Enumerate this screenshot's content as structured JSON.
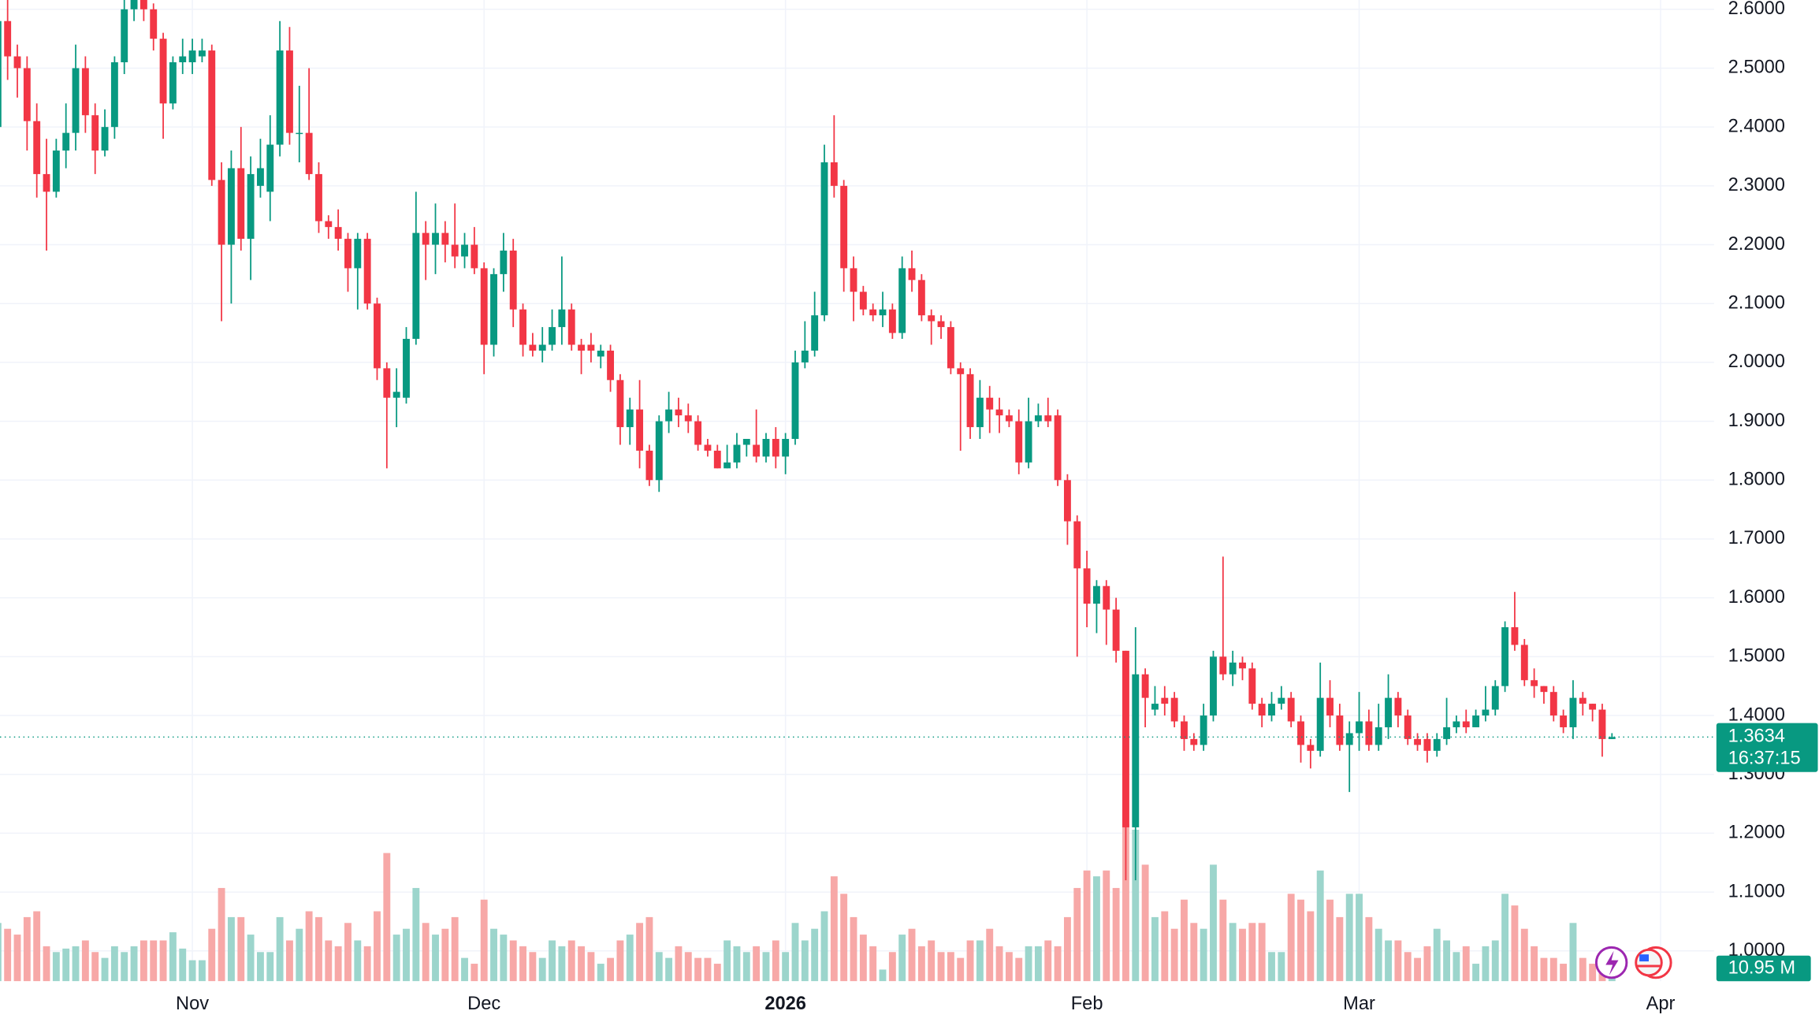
{
  "chart_data": {
    "type": "candlestick",
    "x": [
      0,
      1,
      2,
      3,
      4,
      5,
      6,
      7,
      8,
      9,
      10,
      11,
      12,
      13,
      14,
      15,
      16,
      17,
      18,
      19,
      20,
      21,
      22,
      23,
      24,
      25,
      26,
      27,
      28,
      29,
      30,
      31,
      32,
      33,
      34,
      35,
      36,
      37,
      38,
      39,
      40,
      41,
      42,
      43,
      44,
      45,
      46,
      47,
      48,
      49,
      50,
      51,
      52,
      53,
      54,
      55,
      56,
      57,
      58,
      59,
      60,
      61,
      62,
      63,
      64,
      65,
      66,
      67,
      68,
      69,
      70,
      71,
      72,
      73,
      74,
      75,
      76,
      77,
      78,
      79,
      80,
      81,
      82,
      83,
      84,
      85,
      86,
      87,
      88,
      89,
      90,
      91,
      92,
      93,
      94,
      95,
      96,
      97,
      98,
      99,
      100,
      101,
      102,
      103,
      104,
      105,
      106,
      107,
      108,
      109,
      110,
      111,
      112,
      113,
      114,
      115,
      116,
      117,
      118,
      119,
      120,
      121,
      122,
      123,
      124,
      125,
      126,
      127,
      128,
      129,
      130,
      131,
      132,
      133,
      134,
      135,
      136,
      137,
      138,
      139,
      140,
      141,
      142,
      143,
      144,
      145,
      146,
      147,
      148,
      149,
      150,
      151,
      152,
      153,
      154,
      155,
      156,
      157,
      158,
      159,
      160,
      161,
      162,
      163,
      164,
      165,
      166
    ],
    "open": [
      2.4,
      2.58,
      2.52,
      2.5,
      2.41,
      2.32,
      2.29,
      2.36,
      2.39,
      2.5,
      2.42,
      2.36,
      2.4,
      2.51,
      2.6,
      2.62,
      2.6,
      2.55,
      2.44,
      2.51,
      2.51,
      2.52,
      2.53,
      2.31,
      2.2,
      2.33,
      2.21,
      2.3,
      2.29,
      2.37,
      2.53,
      2.39,
      2.39,
      2.32,
      2.24,
      2.23,
      2.21,
      2.16,
      2.21,
      2.1,
      1.99,
      1.94,
      1.94,
      2.04,
      2.22,
      2.2,
      2.22,
      2.2,
      2.18,
      2.2,
      2.16,
      2.03,
      2.15,
      2.19,
      2.09,
      2.03,
      2.02,
      2.03,
      2.06,
      2.09,
      2.03,
      2.03,
      2.01,
      2.02,
      1.97,
      1.89,
      1.92,
      1.85,
      1.8,
      1.9,
      1.92,
      1.91,
      1.9,
      1.86,
      1.85,
      1.82,
      1.83,
      1.86,
      1.86,
      1.84,
      1.87,
      1.84,
      1.87,
      2.0,
      2.02,
      2.08,
      2.34,
      2.3,
      2.16,
      2.12,
      2.09,
      2.08,
      2.09,
      2.05,
      2.16,
      2.14,
      2.08,
      2.07,
      2.06,
      1.99,
      1.98,
      1.89,
      1.94,
      1.92,
      1.91,
      1.9,
      1.83,
      1.9,
      1.91,
      1.91,
      1.8,
      1.73,
      1.65,
      1.59,
      1.62,
      1.58,
      1.51,
      1.21,
      1.47,
      1.41,
      1.43,
      1.43,
      1.39,
      1.36,
      1.35,
      1.4,
      1.5,
      1.47,
      1.49,
      1.48,
      1.42,
      1.4,
      1.42,
      1.43,
      1.39,
      1.35,
      1.34,
      1.43,
      1.4,
      1.35,
      1.37,
      1.39,
      1.35,
      1.38,
      1.43,
      1.4,
      1.36,
      1.36,
      1.34,
      1.36,
      1.38,
      1.39,
      1.38,
      1.4,
      1.41,
      1.45,
      1.55,
      1.52,
      1.46,
      1.45,
      1.44,
      1.4,
      1.38,
      1.43,
      1.42,
      1.41,
      1.36
    ],
    "high": [
      2.62,
      2.62,
      2.54,
      2.52,
      2.44,
      2.38,
      2.38,
      2.44,
      2.54,
      2.52,
      2.44,
      2.43,
      2.52,
      2.62,
      2.64,
      2.64,
      2.61,
      2.56,
      2.52,
      2.55,
      2.55,
      2.55,
      2.54,
      2.34,
      2.36,
      2.4,
      2.35,
      2.38,
      2.42,
      2.58,
      2.57,
      2.47,
      2.5,
      2.34,
      2.25,
      2.26,
      2.22,
      2.22,
      2.22,
      2.11,
      2.0,
      1.99,
      2.06,
      2.29,
      2.24,
      2.27,
      2.24,
      2.27,
      2.22,
      2.23,
      2.17,
      2.16,
      2.22,
      2.21,
      2.1,
      2.05,
      2.06,
      2.09,
      2.18,
      2.1,
      2.04,
      2.05,
      2.03,
      2.03,
      1.98,
      1.94,
      1.97,
      1.86,
      1.91,
      1.95,
      1.94,
      1.93,
      1.91,
      1.87,
      1.86,
      1.86,
      1.88,
      1.87,
      1.92,
      1.88,
      1.89,
      1.88,
      2.02,
      2.07,
      2.12,
      2.37,
      2.42,
      2.31,
      2.18,
      2.13,
      2.1,
      2.12,
      2.1,
      2.18,
      2.19,
      2.15,
      2.09,
      2.08,
      2.07,
      2.0,
      1.99,
      1.97,
      1.96,
      1.94,
      1.92,
      1.92,
      1.94,
      1.93,
      1.94,
      1.92,
      1.81,
      1.74,
      1.68,
      1.63,
      1.63,
      1.6,
      1.51,
      1.55,
      1.48,
      1.45,
      1.45,
      1.44,
      1.4,
      1.37,
      1.42,
      1.51,
      1.67,
      1.51,
      1.5,
      1.49,
      1.43,
      1.44,
      1.45,
      1.44,
      1.4,
      1.36,
      1.49,
      1.46,
      1.42,
      1.39,
      1.44,
      1.41,
      1.42,
      1.47,
      1.44,
      1.41,
      1.37,
      1.37,
      1.37,
      1.43,
      1.4,
      1.41,
      1.41,
      1.45,
      1.46,
      1.56,
      1.61,
      1.53,
      1.48,
      1.45,
      1.45,
      1.41,
      1.46,
      1.44,
      1.42,
      1.42,
      1.37
    ],
    "low": [
      2.38,
      2.48,
      2.45,
      2.36,
      2.28,
      2.19,
      2.28,
      2.33,
      2.36,
      2.39,
      2.32,
      2.35,
      2.38,
      2.49,
      2.58,
      2.58,
      2.53,
      2.38,
      2.43,
      2.49,
      2.49,
      2.51,
      2.3,
      2.07,
      2.1,
      2.19,
      2.14,
      2.28,
      2.24,
      2.35,
      2.37,
      2.34,
      2.31,
      2.22,
      2.21,
      2.19,
      2.12,
      2.09,
      2.09,
      1.97,
      1.82,
      1.89,
      1.93,
      2.03,
      2.14,
      2.15,
      2.17,
      2.16,
      2.16,
      2.15,
      1.98,
      2.01,
      2.12,
      2.06,
      2.01,
      2.01,
      2.0,
      2.02,
      2.03,
      2.02,
      1.98,
      2.0,
      1.99,
      1.95,
      1.86,
      1.86,
      1.82,
      1.79,
      1.78,
      1.88,
      1.89,
      1.88,
      1.85,
      1.84,
      1.82,
      1.82,
      1.82,
      1.84,
      1.83,
      1.83,
      1.82,
      1.81,
      1.86,
      1.99,
      2.01,
      2.07,
      2.28,
      2.12,
      2.07,
      2.08,
      2.07,
      2.06,
      2.04,
      2.04,
      2.12,
      2.07,
      2.03,
      2.04,
      1.98,
      1.85,
      1.87,
      1.87,
      1.88,
      1.88,
      1.89,
      1.81,
      1.82,
      1.89,
      1.89,
      1.79,
      1.69,
      1.5,
      1.55,
      1.54,
      1.52,
      1.49,
      1.12,
      1.12,
      1.38,
      1.4,
      1.4,
      1.38,
      1.34,
      1.34,
      1.34,
      1.39,
      1.46,
      1.45,
      1.46,
      1.41,
      1.38,
      1.39,
      1.41,
      1.38,
      1.32,
      1.31,
      1.33,
      1.38,
      1.34,
      1.27,
      1.34,
      1.34,
      1.34,
      1.36,
      1.38,
      1.35,
      1.34,
      1.32,
      1.33,
      1.35,
      1.37,
      1.37,
      1.38,
      1.39,
      1.4,
      1.44,
      1.51,
      1.45,
      1.43,
      1.42,
      1.39,
      1.37,
      1.36,
      1.4,
      1.39,
      1.33,
      1.36
    ],
    "close": [
      2.58,
      2.52,
      2.5,
      2.41,
      2.32,
      2.29,
      2.36,
      2.39,
      2.5,
      2.42,
      2.36,
      2.4,
      2.51,
      2.6,
      2.63,
      2.6,
      2.55,
      2.44,
      2.51,
      2.52,
      2.53,
      2.53,
      2.31,
      2.2,
      2.33,
      2.21,
      2.32,
      2.33,
      2.37,
      2.53,
      2.39,
      2.39,
      2.32,
      2.24,
      2.23,
      2.21,
      2.16,
      2.21,
      2.1,
      1.99,
      1.94,
      1.95,
      2.04,
      2.22,
      2.2,
      2.22,
      2.2,
      2.18,
      2.2,
      2.16,
      2.03,
      2.15,
      2.19,
      2.09,
      2.03,
      2.02,
      2.03,
      2.06,
      2.09,
      2.03,
      2.02,
      2.02,
      2.02,
      1.97,
      1.89,
      1.92,
      1.85,
      1.8,
      1.9,
      1.92,
      1.91,
      1.9,
      1.86,
      1.85,
      1.82,
      1.83,
      1.86,
      1.87,
      1.84,
      1.87,
      1.84,
      1.87,
      2.0,
      2.02,
      2.08,
      2.34,
      2.3,
      2.16,
      2.12,
      2.09,
      2.08,
      2.09,
      2.05,
      2.16,
      2.14,
      2.08,
      2.07,
      2.06,
      1.99,
      1.98,
      1.89,
      1.94,
      1.92,
      1.91,
      1.9,
      1.83,
      1.9,
      1.91,
      1.9,
      1.8,
      1.73,
      1.65,
      1.59,
      1.62,
      1.58,
      1.51,
      1.21,
      1.47,
      1.43,
      1.42,
      1.42,
      1.39,
      1.36,
      1.35,
      1.4,
      1.5,
      1.47,
      1.49,
      1.48,
      1.42,
      1.4,
      1.42,
      1.43,
      1.39,
      1.35,
      1.34,
      1.43,
      1.4,
      1.35,
      1.37,
      1.39,
      1.35,
      1.38,
      1.43,
      1.4,
      1.36,
      1.35,
      1.34,
      1.36,
      1.38,
      1.39,
      1.38,
      1.4,
      1.41,
      1.45,
      1.55,
      1.52,
      1.46,
      1.45,
      1.44,
      1.4,
      1.38,
      1.43,
      1.42,
      1.41,
      1.36,
      1.3634
    ],
    "volume": {
      "name": "Volume",
      "axis": "y2",
      "values": [
        50,
        45,
        40,
        55,
        60,
        30,
        25,
        28,
        30,
        35,
        25,
        20,
        30,
        25,
        30,
        35,
        35,
        35,
        42,
        28,
        18,
        18,
        45,
        80,
        55,
        55,
        40,
        25,
        25,
        55,
        35,
        45,
        60,
        55,
        35,
        30,
        50,
        35,
        30,
        60,
        110,
        40,
        45,
        80,
        50,
        40,
        45,
        55,
        20,
        15,
        70,
        45,
        40,
        35,
        30,
        25,
        20,
        35,
        30,
        35,
        30,
        25,
        15,
        20,
        35,
        40,
        50,
        55,
        25,
        20,
        30,
        25,
        20,
        20,
        15,
        35,
        30,
        25,
        30,
        25,
        35,
        25,
        50,
        35,
        45,
        60,
        90,
        75,
        55,
        40,
        30,
        10,
        25,
        40,
        45,
        30,
        35,
        25,
        25,
        20,
        35,
        35,
        45,
        30,
        25,
        20,
        30,
        30,
        35,
        30,
        55,
        80,
        95,
        90,
        95,
        80,
        135,
        130,
        100,
        55,
        60,
        45,
        70,
        50,
        45,
        100,
        70,
        50,
        45,
        50,
        50,
        25,
        25,
        75,
        70,
        60,
        95,
        70,
        55,
        75,
        75,
        55,
        45,
        35,
        35,
        25,
        20,
        30,
        45,
        35,
        25,
        30,
        15,
        30,
        35,
        75,
        65,
        45,
        30,
        20,
        20,
        15,
        50,
        20,
        15,
        12,
        10.95
      ],
      "last_value_label": "10.95 M"
    },
    "countdown": "16:37:15",
    "up_color": "#089981",
    "down_color": "#f23645",
    "volume_up_color": "#9cd5cc",
    "volume_down_color": "#f7a8a7",
    "grid": true,
    "xlim": [
      0.216,
      176.5
    ],
    "ylim": [
      0.9485,
      2.6158
    ],
    "y2lim": [
      0,
      842
    ],
    "xticks": [
      {
        "value": 20,
        "label": "Nov"
      },
      {
        "value": 50,
        "label": "Dec"
      },
      {
        "value": 81,
        "label": "2026",
        "bold": true
      },
      {
        "value": 112,
        "label": "Feb"
      },
      {
        "value": 140,
        "label": "Mar"
      },
      {
        "value": 171,
        "label": "Apr"
      }
    ],
    "yticks": [
      {
        "value": 1.0,
        "label": "1.0000"
      },
      {
        "value": 1.1,
        "label": "1.1000"
      },
      {
        "value": 1.2,
        "label": "1.2000"
      },
      {
        "value": 1.3,
        "label": "1.3000"
      },
      {
        "value": 1.4,
        "label": "1.4000"
      },
      {
        "value": 1.5,
        "label": "1.5000"
      },
      {
        "value": 1.6,
        "label": "1.6000"
      },
      {
        "value": 1.7,
        "label": "1.7000"
      },
      {
        "value": 1.8,
        "label": "1.8000"
      },
      {
        "value": 1.9,
        "label": "1.9000"
      },
      {
        "value": 2.0,
        "label": "2.0000"
      },
      {
        "value": 2.1,
        "label": "2.1000"
      },
      {
        "value": 2.2,
        "label": "2.2000"
      },
      {
        "value": 2.3,
        "label": "2.3000"
      },
      {
        "value": 2.4,
        "label": "2.4000"
      },
      {
        "value": 2.5,
        "label": "2.5000"
      },
      {
        "value": 2.6,
        "label": "2.6000"
      }
    ]
  }
}
